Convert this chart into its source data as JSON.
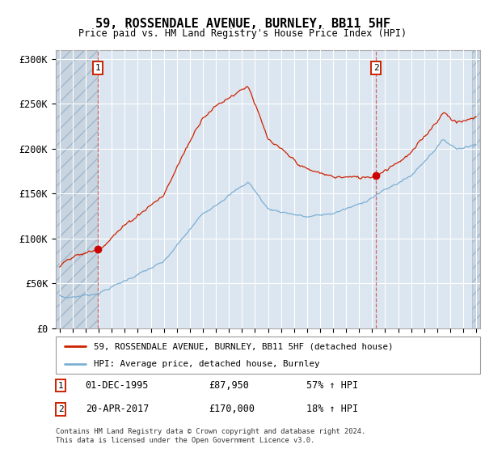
{
  "title": "59, ROSSENDALE AVENUE, BURNLEY, BB11 5HF",
  "subtitle": "Price paid vs. HM Land Registry's House Price Index (HPI)",
  "ylim": [
    0,
    310000
  ],
  "yticks": [
    0,
    50000,
    100000,
    150000,
    200000,
    250000,
    300000
  ],
  "ytick_labels": [
    "£0",
    "£50K",
    "£100K",
    "£150K",
    "£200K",
    "£250K",
    "£300K"
  ],
  "x_start_year": 1993,
  "x_end_year": 2025,
  "sale1_date": "01-DEC-1995",
  "sale1_year": 1995.92,
  "sale1_price": 87950,
  "sale2_date": "20-APR-2017",
  "sale2_year": 2017.29,
  "sale2_price": 170000,
  "sale1_pct": "57% ↑ HPI",
  "sale2_pct": "18% ↑ HPI",
  "hpi_color": "#7bafd4",
  "price_color": "#cc2200",
  "marker_color": "#cc0000",
  "grid_color": "#c8d8e8",
  "plot_bg_color": "#dce6f0",
  "legend_line1": "59, ROSSENDALE AVENUE, BURNLEY, BB11 5HF (detached house)",
  "legend_line2": "HPI: Average price, detached house, Burnley",
  "footer": "Contains HM Land Registry data © Crown copyright and database right 2024.\nThis data is licensed under the Open Government Licence v3.0."
}
